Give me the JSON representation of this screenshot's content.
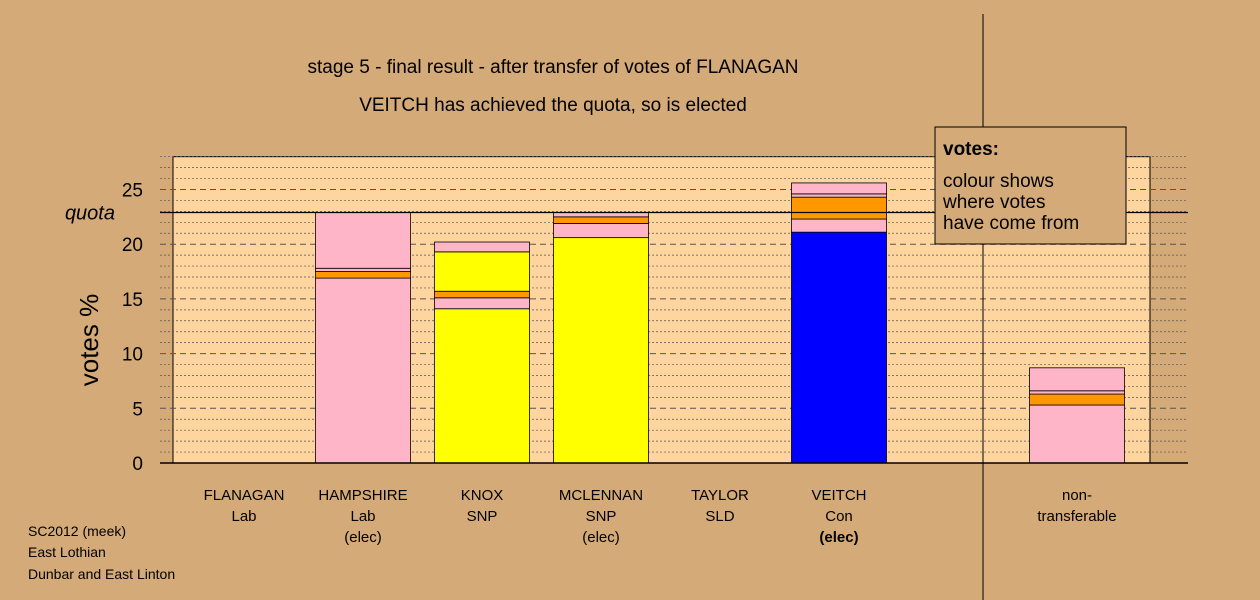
{
  "title_line1": "stage 5 - final result - after transfer of votes of FLANAGAN",
  "title_line2": "VEITCH has achieved the quota, so is elected",
  "ylabel": "votes %",
  "quota_label": "quota",
  "quota_value": 22.9,
  "ylim": [
    0,
    28
  ],
  "yticks": [
    0,
    5,
    10,
    15,
    20,
    25
  ],
  "legend": {
    "title": "votes:",
    "lines": [
      "colour shows",
      "where votes",
      "have come from"
    ]
  },
  "footer": [
    "SC2012 (meek)",
    "East Lothian",
    "Dunbar and East Linton"
  ],
  "colors": {
    "background": "#d4aa78",
    "plot_area": "#ffd59f",
    "Lab": "#ffb5c8",
    "SNP": "#ffff00",
    "Con": "#0000ff",
    "transfer_orange": "#ff9800"
  },
  "chart_data": {
    "type": "bar",
    "stacked": true,
    "title": "stage 5 - final result - after transfer of votes of FLANAGAN",
    "subtitle": "VEITCH has achieved the quota, so is elected",
    "ylabel": "votes %",
    "ylim": [
      0,
      28
    ],
    "grid": true,
    "candidates": [
      {
        "name": "FLANAGAN",
        "party": "Lab",
        "status": "",
        "segments": []
      },
      {
        "name": "HAMPSHIRE",
        "party": "Lab",
        "status": "(elec)",
        "segments": [
          {
            "value": 16.9,
            "color": "#ffb5c8"
          },
          {
            "value": 0.6,
            "color": "#ff9800"
          },
          {
            "value": 0.3,
            "color": "#ffb5c8"
          },
          {
            "value": 5.1,
            "color": "#ffb5c8"
          }
        ]
      },
      {
        "name": "KNOX",
        "party": "SNP",
        "status": "",
        "segments": [
          {
            "value": 14.1,
            "color": "#ffff00"
          },
          {
            "value": 1.0,
            "color": "#ffb5c8"
          },
          {
            "value": 0.6,
            "color": "#ff9800"
          },
          {
            "value": 3.6,
            "color": "#ffff00"
          },
          {
            "value": 0.9,
            "color": "#ffb5c8"
          }
        ]
      },
      {
        "name": "MCLENNAN",
        "party": "SNP",
        "status": "(elec)",
        "segments": [
          {
            "value": 20.6,
            "color": "#ffff00"
          },
          {
            "value": 1.3,
            "color": "#ffb5c8"
          },
          {
            "value": 0.6,
            "color": "#ff9800"
          },
          {
            "value": 0.4,
            "color": "#ffb5c8"
          }
        ]
      },
      {
        "name": "TAYLOR",
        "party": "SLD",
        "status": "",
        "segments": []
      },
      {
        "name": "VEITCH",
        "party": "Con",
        "status": "(elec)",
        "status_bold": true,
        "segments": [
          {
            "value": 21.1,
            "color": "#0000ff"
          },
          {
            "value": 1.2,
            "color": "#ffb5c8"
          },
          {
            "value": 2.0,
            "color": "#ff9800"
          },
          {
            "value": 0.3,
            "color": "#ffb5c8"
          },
          {
            "value": 1.0,
            "color": "#ffb5c8"
          }
        ]
      },
      {
        "name": "",
        "party": "",
        "status": "",
        "segments": []
      },
      {
        "name": "non-",
        "party": "transferable",
        "status": "",
        "segments": [
          {
            "value": 5.3,
            "color": "#ffb5c8"
          },
          {
            "value": 1.0,
            "color": "#ff9800"
          },
          {
            "value": 0.3,
            "color": "#ffb5c8"
          },
          {
            "value": 2.1,
            "color": "#ffb5c8"
          }
        ]
      }
    ]
  }
}
